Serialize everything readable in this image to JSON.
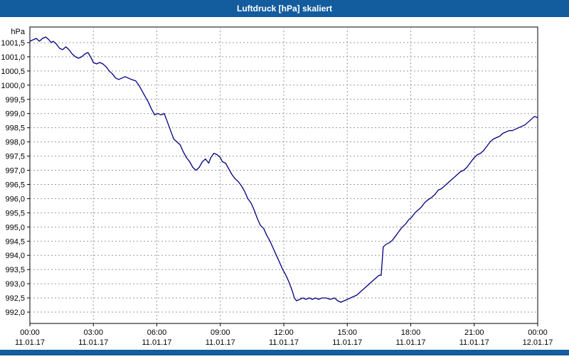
{
  "window": {
    "title": "Luftdruck [hPa] skaliert"
  },
  "colors": {
    "titlebar": "#135c9d",
    "footerbar": "#135c9d",
    "line": "#000080",
    "grid": "#9a9a9a",
    "plot_border": "#000000",
    "plot_background": "#ffffff",
    "label_color": "#000000"
  },
  "chart_data": {
    "type": "line",
    "title": "Luftdruck [hPa] skaliert",
    "ylabel": "hPa",
    "grid": true,
    "legend_position": "none",
    "ylim": [
      991.6,
      1002.05
    ],
    "xlim_hours": [
      0,
      24
    ],
    "y_ticks": [
      {
        "value": 1001.5,
        "label": "1001,5"
      },
      {
        "value": 1001.0,
        "label": "1001,0"
      },
      {
        "value": 1000.5,
        "label": "1000,5"
      },
      {
        "value": 1000.0,
        "label": "1000,0"
      },
      {
        "value": 999.5,
        "label": "999,5"
      },
      {
        "value": 999.0,
        "label": "999,0"
      },
      {
        "value": 998.5,
        "label": "998,5"
      },
      {
        "value": 998.0,
        "label": "998,0"
      },
      {
        "value": 997.5,
        "label": "997,5"
      },
      {
        "value": 997.0,
        "label": "997,0"
      },
      {
        "value": 996.5,
        "label": "996,5"
      },
      {
        "value": 996.0,
        "label": "996,0"
      },
      {
        "value": 995.5,
        "label": "995,5"
      },
      {
        "value": 995.0,
        "label": "995,0"
      },
      {
        "value": 994.5,
        "label": "994,5"
      },
      {
        "value": 994.0,
        "label": "994,0"
      },
      {
        "value": 993.5,
        "label": "993,5"
      },
      {
        "value": 993.0,
        "label": "993,0"
      },
      {
        "value": 992.5,
        "label": "992,5"
      },
      {
        "value": 992.0,
        "label": "992,0"
      }
    ],
    "x_ticks": [
      {
        "hour": 0,
        "time": "00:00",
        "date": "11.01.17"
      },
      {
        "hour": 3,
        "time": "03:00",
        "date": "11.01.17"
      },
      {
        "hour": 6,
        "time": "06:00",
        "date": "11.01.17"
      },
      {
        "hour": 9,
        "time": "09:00",
        "date": "11.01.17"
      },
      {
        "hour": 12,
        "time": "12:00",
        "date": "11.01.17"
      },
      {
        "hour": 15,
        "time": "15:00",
        "date": "11.01.17"
      },
      {
        "hour": 18,
        "time": "18:00",
        "date": "11.01.17"
      },
      {
        "hour": 21,
        "time": "21:00",
        "date": "11.01.17"
      },
      {
        "hour": 24,
        "time": "00:00",
        "date": "12.01.17"
      }
    ],
    "series": [
      {
        "name": "Luftdruck",
        "points": [
          [
            0.0,
            1001.55
          ],
          [
            0.15,
            1001.6
          ],
          [
            0.3,
            1001.65
          ],
          [
            0.45,
            1001.55
          ],
          [
            0.6,
            1001.65
          ],
          [
            0.75,
            1001.7
          ],
          [
            0.9,
            1001.6
          ],
          [
            1.0,
            1001.5
          ],
          [
            1.1,
            1001.55
          ],
          [
            1.25,
            1001.45
          ],
          [
            1.4,
            1001.3
          ],
          [
            1.55,
            1001.25
          ],
          [
            1.7,
            1001.35
          ],
          [
            1.85,
            1001.25
          ],
          [
            2.0,
            1001.1
          ],
          [
            2.15,
            1001.0
          ],
          [
            2.3,
            1000.95
          ],
          [
            2.45,
            1001.0
          ],
          [
            2.6,
            1001.1
          ],
          [
            2.75,
            1001.15
          ],
          [
            2.9,
            1000.95
          ],
          [
            3.0,
            1000.8
          ],
          [
            3.15,
            1000.75
          ],
          [
            3.3,
            1000.8
          ],
          [
            3.45,
            1000.75
          ],
          [
            3.6,
            1000.65
          ],
          [
            3.75,
            1000.5
          ],
          [
            3.9,
            1000.4
          ],
          [
            4.05,
            1000.25
          ],
          [
            4.2,
            1000.2
          ],
          [
            4.35,
            1000.25
          ],
          [
            4.5,
            1000.3
          ],
          [
            4.65,
            1000.25
          ],
          [
            4.8,
            1000.2
          ],
          [
            5.0,
            1000.15
          ],
          [
            5.15,
            1000.0
          ],
          [
            5.3,
            999.8
          ],
          [
            5.45,
            999.6
          ],
          [
            5.6,
            999.4
          ],
          [
            5.75,
            999.15
          ],
          [
            5.9,
            998.95
          ],
          [
            6.05,
            999.0
          ],
          [
            6.2,
            998.95
          ],
          [
            6.35,
            999.0
          ],
          [
            6.5,
            998.7
          ],
          [
            6.65,
            998.4
          ],
          [
            6.8,
            998.1
          ],
          [
            6.95,
            998.0
          ],
          [
            7.1,
            997.9
          ],
          [
            7.25,
            997.65
          ],
          [
            7.4,
            997.45
          ],
          [
            7.55,
            997.3
          ],
          [
            7.7,
            997.1
          ],
          [
            7.85,
            997.0
          ],
          [
            8.0,
            997.1
          ],
          [
            8.15,
            997.3
          ],
          [
            8.3,
            997.4
          ],
          [
            8.45,
            997.25
          ],
          [
            8.55,
            997.45
          ],
          [
            8.7,
            997.6
          ],
          [
            8.85,
            997.55
          ],
          [
            9.0,
            997.45
          ],
          [
            9.1,
            997.3
          ],
          [
            9.25,
            997.25
          ],
          [
            9.4,
            997.05
          ],
          [
            9.55,
            996.85
          ],
          [
            9.7,
            996.7
          ],
          [
            9.85,
            996.6
          ],
          [
            10.0,
            996.45
          ],
          [
            10.15,
            996.25
          ],
          [
            10.3,
            996.0
          ],
          [
            10.45,
            995.85
          ],
          [
            10.6,
            995.6
          ],
          [
            10.75,
            995.3
          ],
          [
            10.9,
            995.05
          ],
          [
            11.05,
            994.95
          ],
          [
            11.2,
            994.7
          ],
          [
            11.35,
            994.5
          ],
          [
            11.5,
            994.25
          ],
          [
            11.65,
            994.0
          ],
          [
            11.8,
            993.75
          ],
          [
            11.95,
            993.5
          ],
          [
            12.1,
            993.3
          ],
          [
            12.25,
            993.05
          ],
          [
            12.4,
            992.75
          ],
          [
            12.5,
            992.5
          ],
          [
            12.6,
            992.4
          ],
          [
            12.75,
            992.45
          ],
          [
            12.9,
            992.5
          ],
          [
            13.05,
            992.45
          ],
          [
            13.2,
            992.5
          ],
          [
            13.35,
            992.45
          ],
          [
            13.5,
            992.5
          ],
          [
            13.65,
            992.45
          ],
          [
            13.8,
            992.5
          ],
          [
            14.0,
            992.5
          ],
          [
            14.2,
            992.45
          ],
          [
            14.4,
            992.5
          ],
          [
            14.55,
            992.4
          ],
          [
            14.7,
            992.35
          ],
          [
            14.85,
            992.4
          ],
          [
            15.0,
            992.45
          ],
          [
            15.15,
            992.5
          ],
          [
            15.3,
            992.55
          ],
          [
            15.45,
            992.6
          ],
          [
            15.6,
            992.7
          ],
          [
            15.75,
            992.8
          ],
          [
            15.9,
            992.9
          ],
          [
            16.05,
            993.0
          ],
          [
            16.2,
            993.1
          ],
          [
            16.35,
            993.2
          ],
          [
            16.5,
            993.3
          ],
          [
            16.6,
            993.3
          ],
          [
            16.7,
            994.3
          ],
          [
            16.85,
            994.4
          ],
          [
            17.0,
            994.45
          ],
          [
            17.15,
            994.55
          ],
          [
            17.3,
            994.7
          ],
          [
            17.45,
            994.85
          ],
          [
            17.6,
            995.0
          ],
          [
            17.75,
            995.1
          ],
          [
            17.9,
            995.25
          ],
          [
            18.05,
            995.35
          ],
          [
            18.2,
            995.5
          ],
          [
            18.35,
            995.6
          ],
          [
            18.5,
            995.7
          ],
          [
            18.65,
            995.85
          ],
          [
            18.8,
            995.95
          ],
          [
            19.0,
            996.05
          ],
          [
            19.15,
            996.15
          ],
          [
            19.3,
            996.3
          ],
          [
            19.45,
            996.35
          ],
          [
            19.6,
            996.45
          ],
          [
            19.75,
            996.55
          ],
          [
            19.9,
            996.65
          ],
          [
            20.05,
            996.75
          ],
          [
            20.2,
            996.85
          ],
          [
            20.35,
            996.95
          ],
          [
            20.5,
            997.0
          ],
          [
            20.65,
            997.1
          ],
          [
            20.8,
            997.25
          ],
          [
            21.0,
            997.45
          ],
          [
            21.15,
            997.55
          ],
          [
            21.3,
            997.6
          ],
          [
            21.45,
            997.7
          ],
          [
            21.6,
            997.85
          ],
          [
            21.75,
            998.0
          ],
          [
            21.9,
            998.1
          ],
          [
            22.05,
            998.15
          ],
          [
            22.2,
            998.2
          ],
          [
            22.35,
            998.3
          ],
          [
            22.5,
            998.35
          ],
          [
            22.65,
            998.4
          ],
          [
            22.8,
            998.4
          ],
          [
            22.95,
            998.45
          ],
          [
            23.1,
            998.5
          ],
          [
            23.25,
            998.55
          ],
          [
            23.4,
            998.6
          ],
          [
            23.55,
            998.7
          ],
          [
            23.7,
            998.8
          ],
          [
            23.85,
            998.9
          ],
          [
            24.0,
            998.85
          ]
        ]
      }
    ]
  }
}
